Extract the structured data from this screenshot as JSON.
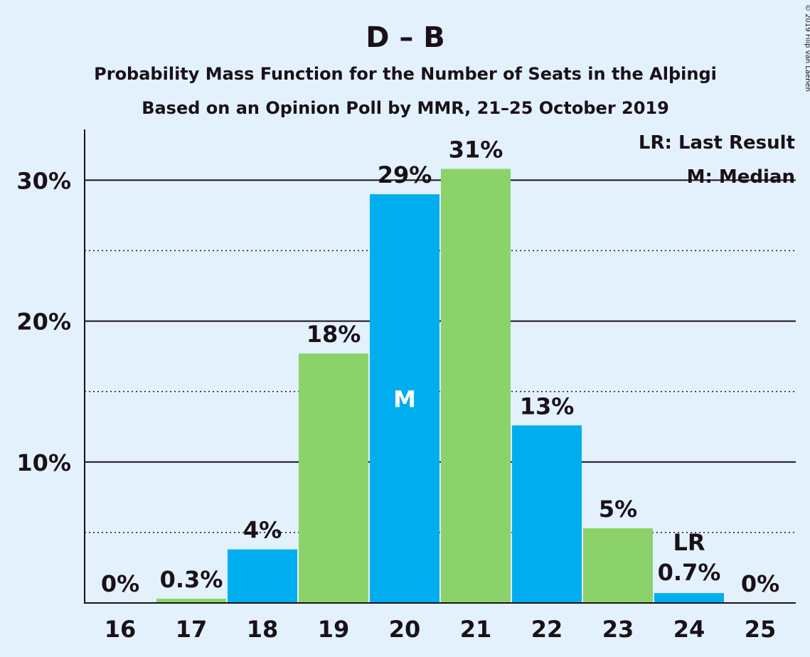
{
  "chart_data": {
    "type": "bar",
    "title": "D – B",
    "subtitle": "Probability Mass Function for the Number of Seats in the Alþingi",
    "subtitle2": "Based on an Opinion Poll by MMR, 21–25 October 2019",
    "copyright": "© 2019 Filip van Laenen",
    "categories": [
      "16",
      "17",
      "18",
      "19",
      "20",
      "21",
      "22",
      "23",
      "24",
      "25"
    ],
    "values": [
      0,
      0.3,
      3.8,
      17.7,
      29.0,
      30.8,
      12.6,
      5.3,
      0.7,
      0
    ],
    "labels": [
      "0%",
      "0.3%",
      "4%",
      "18%",
      "29%",
      "31%",
      "13%",
      "5%",
      "0.7%",
      "0%"
    ],
    "colors": [
      "#00aeef",
      "#8cd26a",
      "#00aeef",
      "#8cd26a",
      "#00aeef",
      "#8cd26a",
      "#00aeef",
      "#8cd26a",
      "#00aeef",
      "#8cd26a"
    ],
    "yticks": [
      {
        "value": 10,
        "label": "10%"
      },
      {
        "value": 20,
        "label": "20%"
      },
      {
        "value": 30,
        "label": "30%"
      }
    ],
    "minor_gridlines": [
      5,
      15,
      25
    ],
    "ylim": [
      0,
      33.6
    ],
    "median": {
      "category": "20",
      "label": "M"
    },
    "last_result": {
      "category": "24",
      "label": "LR"
    },
    "legend": [
      "LR: Last Result",
      "M: Median"
    ],
    "legend_position": "top-right",
    "grid": true
  }
}
